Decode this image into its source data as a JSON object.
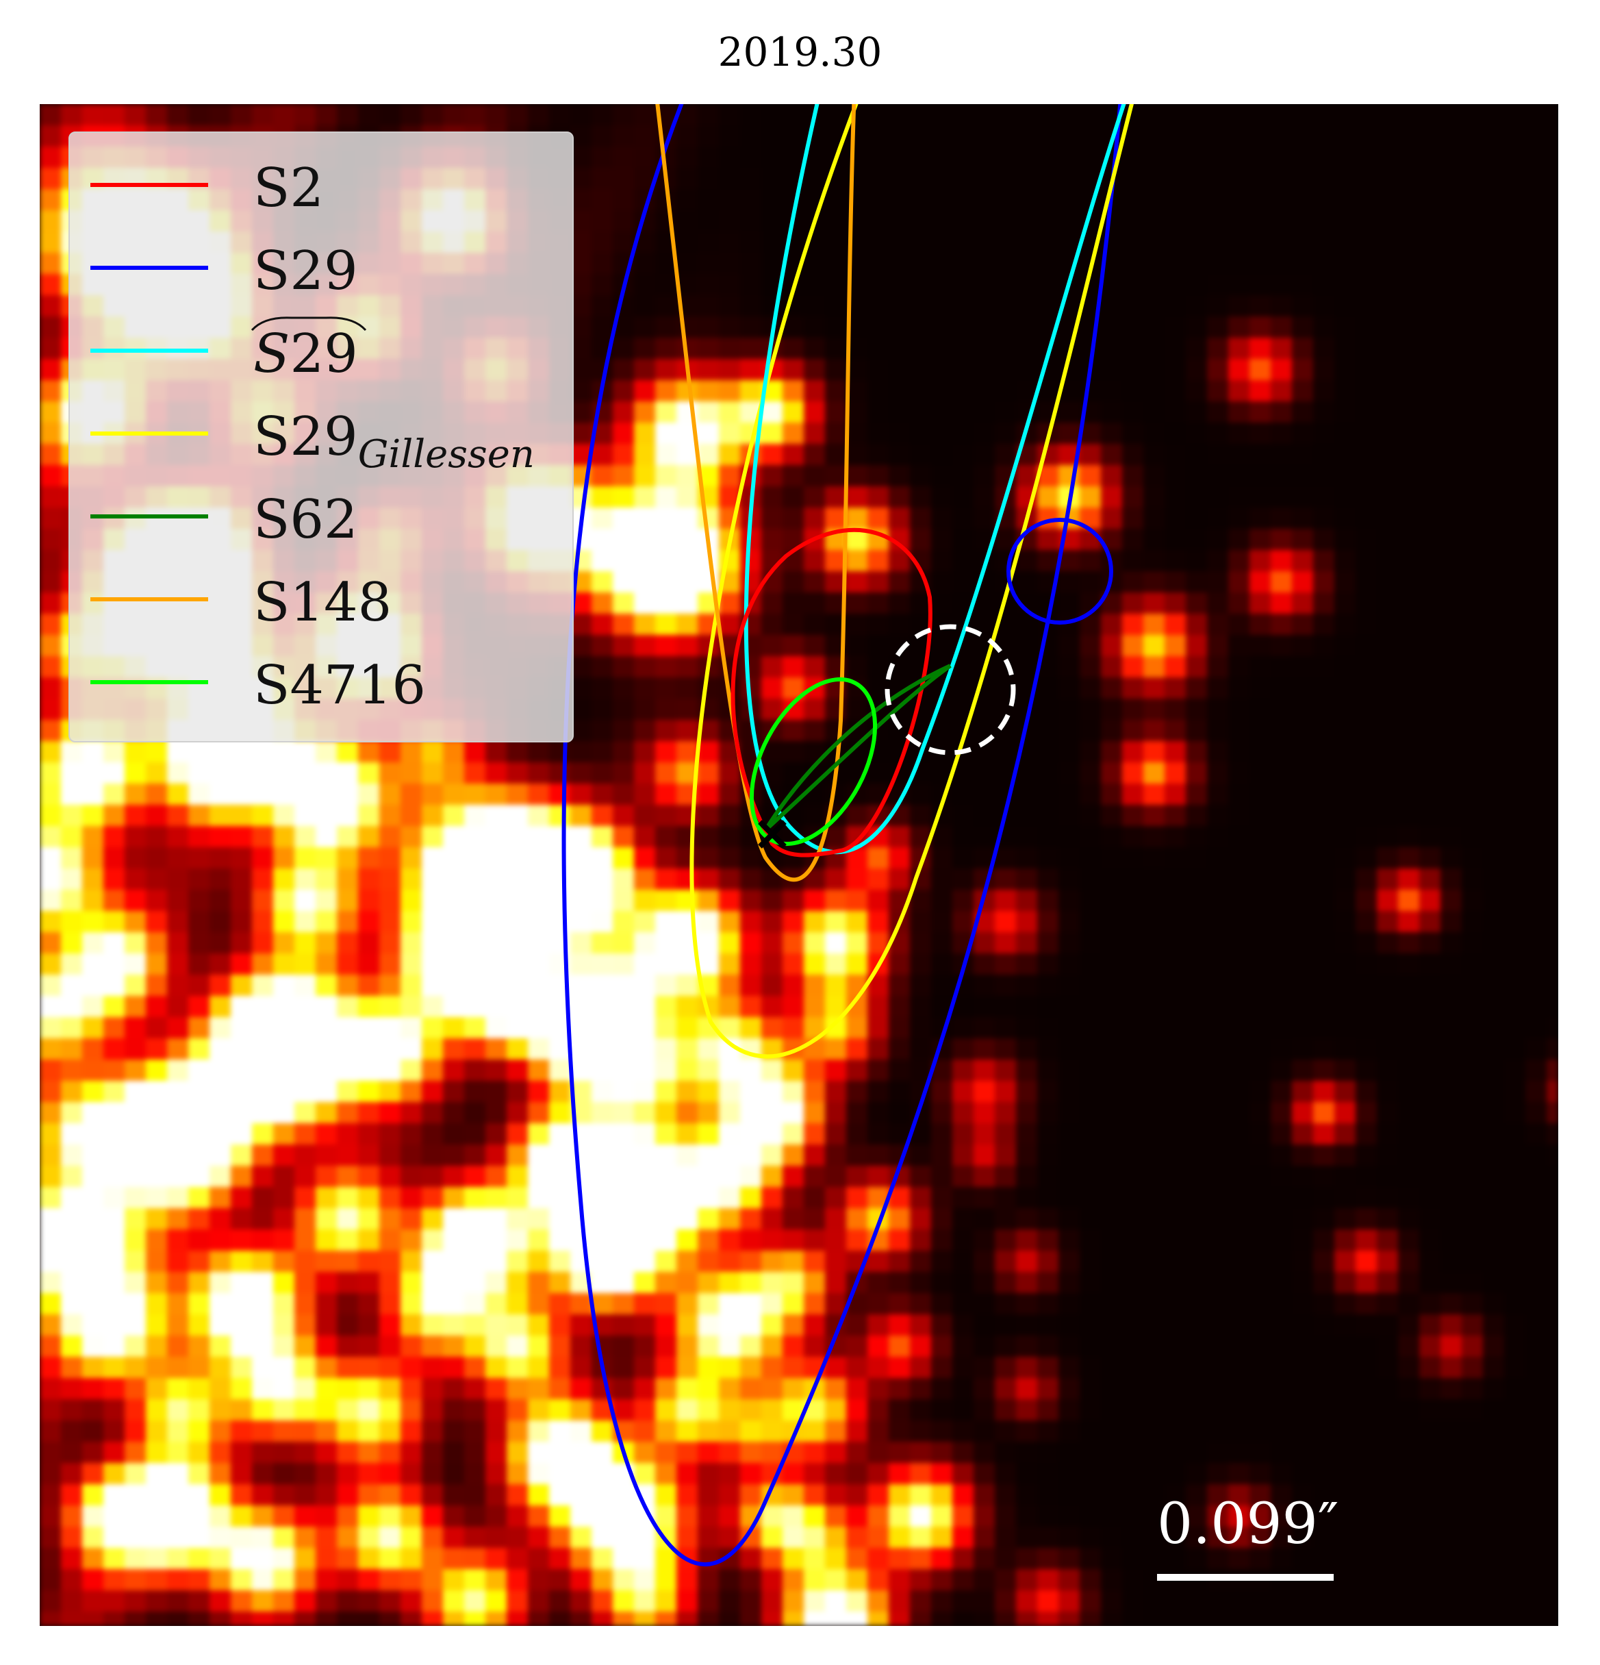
{
  "title": "2019.30",
  "legend": {
    "items": [
      {
        "base": "S2",
        "sub": "",
        "tilde": false,
        "color": "#ff0000"
      },
      {
        "base": "S29",
        "sub": "",
        "tilde": false,
        "color": "#0000ff"
      },
      {
        "base": "S29",
        "sub": "",
        "tilde": true,
        "color": "#00ffff"
      },
      {
        "base": "S29",
        "sub": "Gillessen",
        "tilde": false,
        "color": "#ffff00"
      },
      {
        "base": "S62",
        "sub": "",
        "tilde": false,
        "color": "#008000"
      },
      {
        "base": "S148",
        "sub": "",
        "tilde": false,
        "color": "#ffa500"
      },
      {
        "base": "S4716",
        "sub": "",
        "tilde": false,
        "color": "#00ff00"
      }
    ]
  },
  "scale_bar": {
    "label": "0.099″"
  },
  "colormap": "hot",
  "marker": "black-x-icon",
  "highlight": "white dashed circle"
}
